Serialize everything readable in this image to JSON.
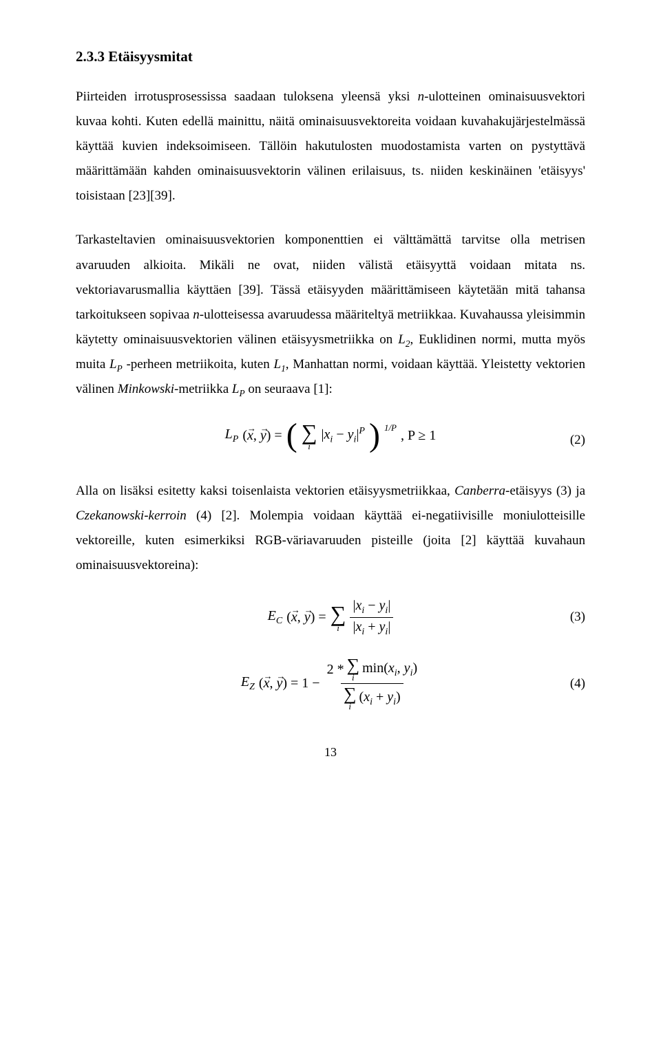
{
  "heading": "2.3.3 Etäisyysmitat",
  "para1_a": "Piirteiden irrotusprosessissa saadaan tuloksena yleensä yksi ",
  "para1_n": "n",
  "para1_b": "-ulotteinen ominaisuusvektori kuvaa kohti. Kuten edellä mainittu, näitä ominaisuusvektoreita voidaan kuvahakujärjestelmässä käyttää kuvien indeksoimiseen. Tällöin hakutulosten muodostamista varten on pystyttävä määrittämään kahden ominaisuusvektorin välinen erilaisuus, ts. niiden keskinäinen 'etäisyys' toisistaan [23][39].",
  "para2_a": "Tarkasteltavien ominaisuusvektorien komponenttien ei välttämättä tarvitse olla metrisen avaruuden alkioita. Mikäli ne ovat, niiden välistä etäisyyttä voidaan mitata ns. vektoriavarusmallia käyttäen [39]. Tässä etäisyyden määrittämiseen käytetään mitä tahansa tarkoitukseen sopivaa ",
  "para2_n": "n",
  "para2_b": "-ulotteisessa avaruudessa määriteltyä metriikkaa. Kuvahaussa yleisimmin käytetty ominaisuusvektorien välinen etäisyysmetriikka on ",
  "para2_L2": "L",
  "para2_L2sub": "2",
  "para2_c": ", Euklidinen normi, mutta myös muita ",
  "para2_LP": "L",
  "para2_LPsub": "P",
  "para2_d": " -perheen metriikoita, kuten ",
  "para2_L1": "L",
  "para2_L1sub": "1",
  "para2_e": ", Manhattan normi, voidaan käyttää. Yleistetty vektorien välinen ",
  "para2_mink": "Minkowski",
  "para2_f": "-metriikka ",
  "para2_LP2": "L",
  "para2_LP2sub": "P",
  "para2_g": " on seuraava [1]:",
  "eq2": {
    "left_L": "L",
    "left_sub": "P",
    "args": "(x, y) =",
    "x_var": "x",
    "y_var": "y",
    "sigma_sub": "i",
    "abs_open": "|",
    "xi": "x",
    "xi_sub": "i",
    "minus": " − ",
    "yi": "y",
    "yi_sub": "i",
    "abs_close": "|",
    "pow_P": "P",
    "outer_pow": "1/P",
    "cond": ", P ≥ 1",
    "num": "(2)"
  },
  "para3_a": "Alla on lisäksi esitetty kaksi toisenlaista vektorien etäisyysmetriikkaa, ",
  "para3_can": "Canberra",
  "para3_b": "-etäisyys (3) ja ",
  "para3_cz": "Czekanowski-kerroin",
  "para3_c": " (4) [2]. Molempia voidaan käyttää ei-negatiivisille moniulotteisille vektoreille, kuten esimerkiksi RGB-väriavaruuden pisteille (joita [2] käyttää kuvahaun ominaisuusvektoreina):",
  "eq3": {
    "E": "E",
    "sub": "C",
    "args_open": "(",
    "x_var": "x",
    "comma": ", ",
    "y_var": "y",
    "args_close": ") = ",
    "sigma_sub": "i",
    "num_abs_open": "|",
    "num_x": "x",
    "num_x_sub": "i",
    "num_minus": " − ",
    "num_y": "y",
    "num_y_sub": "i",
    "num_abs_close": "|",
    "den_abs_open": "|",
    "den_x": "x",
    "den_x_sub": "i",
    "den_plus": " + ",
    "den_y": "y",
    "den_y_sub": "i",
    "den_abs_close": "|",
    "num": "(3)"
  },
  "eq4": {
    "E": "E",
    "sub": "Z",
    "args_open": "(",
    "x_var": "x",
    "comma": ", ",
    "y_var": "y",
    "args_close": ") = 1 − ",
    "num_prefix": "2 * ",
    "num_sigma_sub": "i",
    "num_min": "min(",
    "num_x": "x",
    "num_x_sub": "i",
    "num_comma": ", ",
    "num_y": "y",
    "num_y_sub": "i",
    "num_close": ")",
    "den_sigma_sub": "i",
    "den_open": "(",
    "den_x": "x",
    "den_x_sub": "i",
    "den_plus": " + ",
    "den_y": "y",
    "den_y_sub": "i",
    "den_close": ")",
    "num": "(4)"
  },
  "page_number": "13"
}
